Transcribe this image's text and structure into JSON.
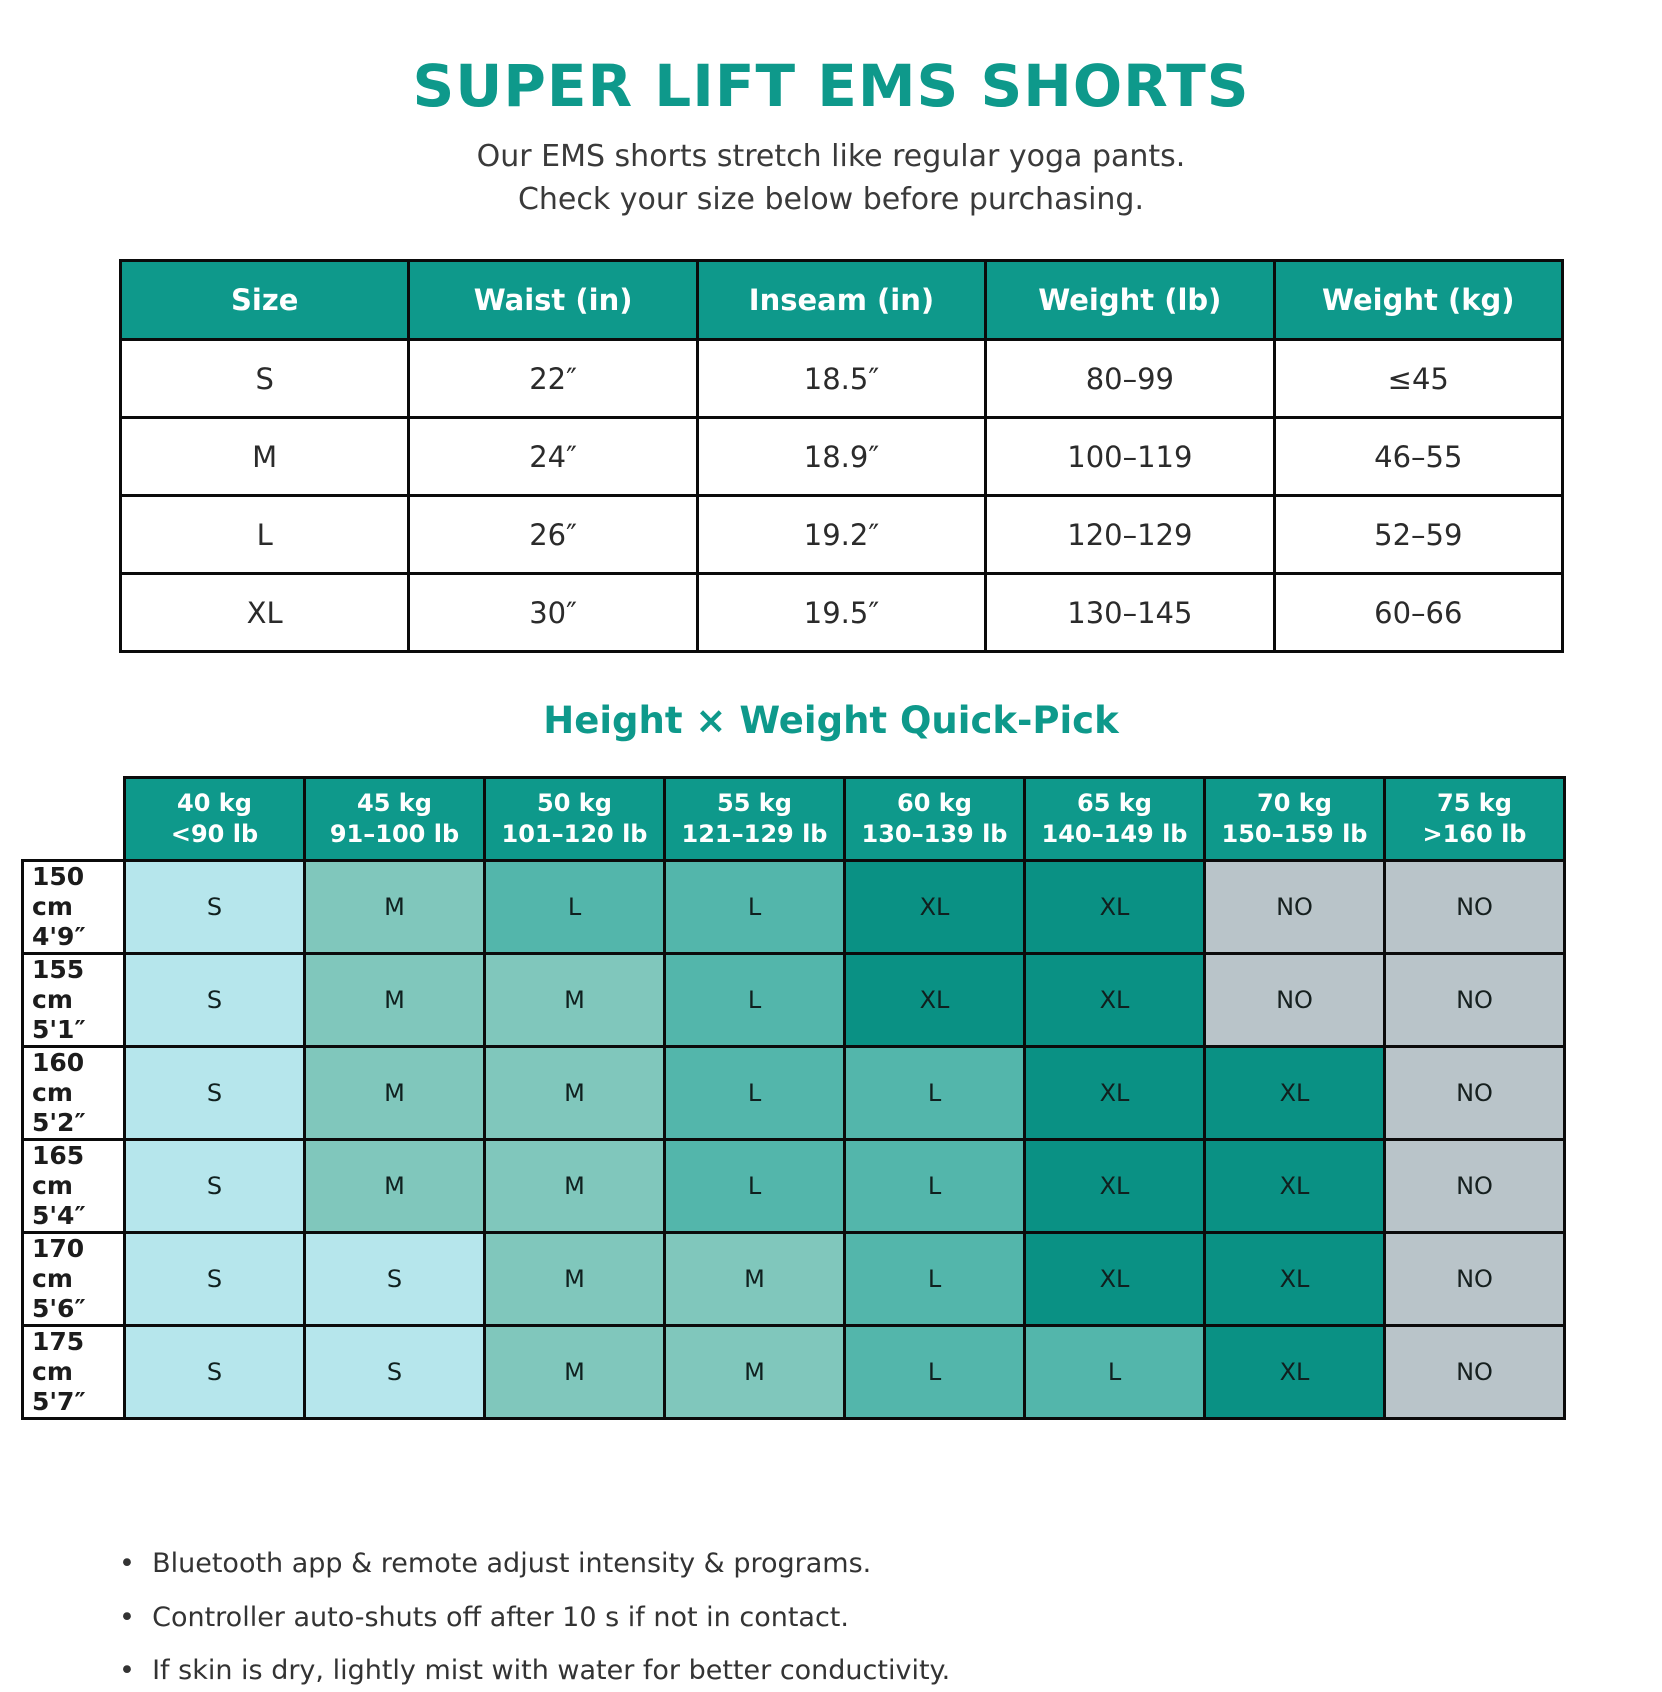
{
  "title": "SUPER LIFT EMS SHORTS",
  "subtitle": {
    "line1": "Our EMS shorts stretch like regular yoga pants.",
    "line2": "Check your size below before purchasing."
  },
  "size_table": {
    "headers": [
      "Size",
      "Waist (in)",
      "Inseam (in)",
      "Weight (lb)",
      "Weight (kg)"
    ],
    "rows": [
      [
        "S",
        "22″",
        "18.5″",
        "80–99",
        "≤45"
      ],
      [
        "M",
        "24″",
        "18.9″",
        "100–119",
        "46–55"
      ],
      [
        "L",
        "26″",
        "19.2″",
        "120–129",
        "52–59"
      ],
      [
        "XL",
        "30″",
        "19.5″",
        "130–145",
        "60–66"
      ]
    ]
  },
  "quick_pick": {
    "title": "Height × Weight Quick-Pick",
    "col_headers": [
      {
        "kg": "40 kg",
        "lb": "<90 lb"
      },
      {
        "kg": "45 kg",
        "lb": "91–100 lb"
      },
      {
        "kg": "50 kg",
        "lb": "101–120 lb"
      },
      {
        "kg": "55 kg",
        "lb": "121–129 lb"
      },
      {
        "kg": "60 kg",
        "lb": "130–139 lb"
      },
      {
        "kg": "65 kg",
        "lb": "140–149 lb"
      },
      {
        "kg": "70 kg",
        "lb": "150–159 lb"
      },
      {
        "kg": "75 kg",
        "lb": ">160 lb"
      }
    ],
    "row_headers": [
      {
        "cm": "150 cm",
        "ft": "4'9″"
      },
      {
        "cm": "155 cm",
        "ft": "5'1″"
      },
      {
        "cm": "160 cm",
        "ft": "5'2″"
      },
      {
        "cm": "165 cm",
        "ft": "5'4″"
      },
      {
        "cm": "170 cm",
        "ft": "5'6″"
      },
      {
        "cm": "175 cm",
        "ft": "5'7″"
      }
    ],
    "cells": [
      [
        "S",
        "M",
        "L",
        "L",
        "XL",
        "XL",
        "NO",
        "NO"
      ],
      [
        "S",
        "M",
        "M",
        "L",
        "XL",
        "XL",
        "NO",
        "NO"
      ],
      [
        "S",
        "M",
        "M",
        "L",
        "L",
        "XL",
        "XL",
        "NO"
      ],
      [
        "S",
        "M",
        "M",
        "L",
        "L",
        "XL",
        "XL",
        "NO"
      ],
      [
        "S",
        "S",
        "M",
        "M",
        "L",
        "XL",
        "XL",
        "NO"
      ],
      [
        "S",
        "S",
        "M",
        "M",
        "L",
        "L",
        "XL",
        "NO"
      ]
    ]
  },
  "notes": [
    "Bluetooth app & remote adjust intensity & programs.",
    "Controller auto-shuts off after 10 s if not in contact.",
    "If skin is dry, lightly mist with water for better conductivity."
  ],
  "colors": {
    "accent": "#0e998b",
    "cell_s": "#b6e6ec",
    "cell_m": "#80c7bc",
    "cell_l": "#53b6ab",
    "cell_xl": "#0a9184",
    "cell_no": "#b9c4c9"
  }
}
